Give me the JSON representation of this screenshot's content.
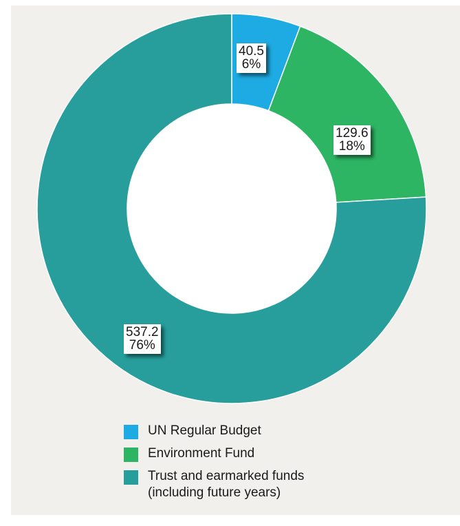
{
  "chart_data": {
    "type": "pie",
    "donut": true,
    "slices": [
      {
        "name": "UN Regular Budget",
        "value": 40.5,
        "percent_label": "6%",
        "value_label": "40.5",
        "color": "#1eaae2"
      },
      {
        "name": "Environment Fund",
        "value": 129.6,
        "percent_label": "18%",
        "value_label": "129.6",
        "color": "#2db563"
      },
      {
        "name": "Trust and earmarked funds",
        "name_line2": "(including future years)",
        "value": 537.2,
        "percent_label": "76%",
        "value_label": "537.2",
        "color": "#279e9c"
      }
    ],
    "legend_position": "bottom"
  }
}
